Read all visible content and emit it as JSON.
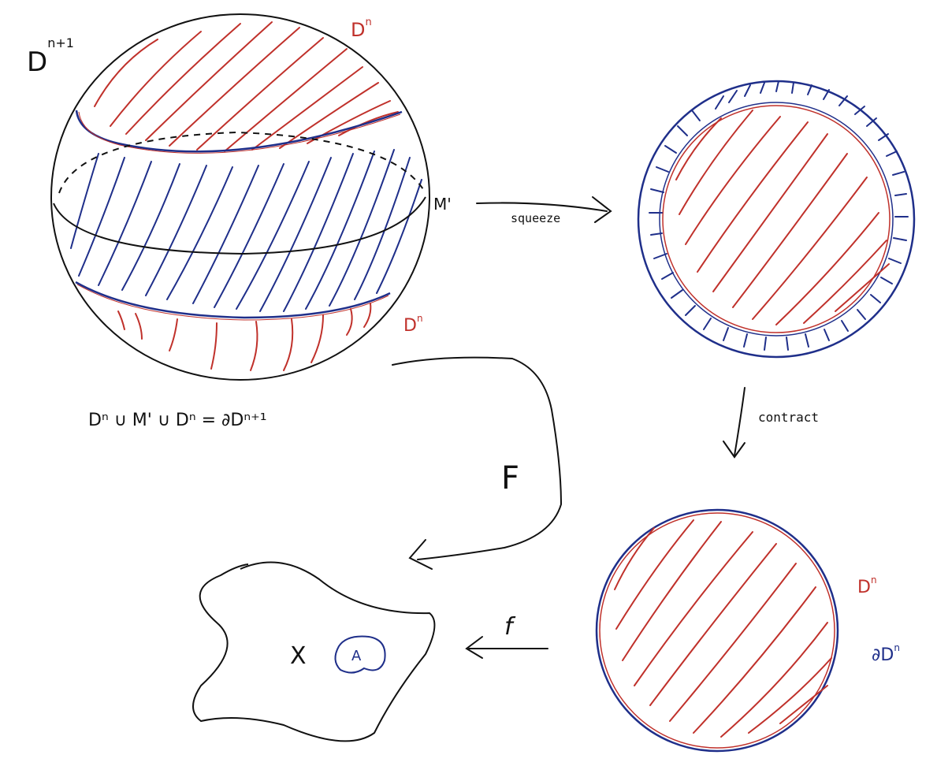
{
  "colors": {
    "ink": "#111111",
    "red": "#c0312b",
    "blue": "#1f2f8a",
    "background": "#ffffff"
  },
  "labels": {
    "d_n_plus_1": {
      "base": "D",
      "sup": "n+1"
    },
    "d_n_top": {
      "base": "D",
      "sup": "n"
    },
    "m_prime": "M'",
    "d_n_bottom": {
      "base": "D",
      "sup": "n"
    },
    "boundary_equation": {
      "base": "D",
      "sup": "n"
    },
    "equation_text": "Dⁿ ∪ M' ∪ Dⁿ = ∂Dⁿ⁺¹",
    "squeeze": "squeeze",
    "contract": "contract",
    "F": "F",
    "f": "f",
    "X": "X",
    "A": "A",
    "d_n_right": {
      "base": "D",
      "sup": "n"
    },
    "boundary_d_n": {
      "base": "∂D",
      "sup": "n"
    }
  }
}
